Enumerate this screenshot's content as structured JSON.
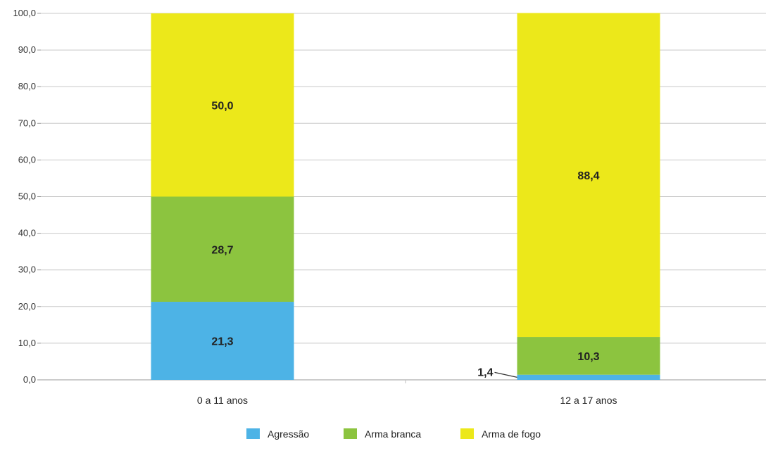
{
  "chart_data": {
    "type": "bar",
    "stacked": true,
    "categories": [
      "0 a 11 anos",
      "12 a 17 anos"
    ],
    "series": [
      {
        "name": "Agressão",
        "color": "#4db3e6",
        "values": [
          21.3,
          1.4
        ]
      },
      {
        "name": "Arma branca",
        "color": "#8cc43f",
        "values": [
          28.7,
          10.3
        ]
      },
      {
        "name": "Arma de fogo",
        "color": "#ece81a",
        "values": [
          50.0,
          88.4
        ]
      }
    ],
    "data_labels": [
      [
        "21,3",
        "1,4"
      ],
      [
        "28,7",
        "10,3"
      ],
      [
        "50,0",
        "88,4"
      ]
    ],
    "y_ticks": [
      0,
      10,
      20,
      30,
      40,
      50,
      60,
      70,
      80,
      90,
      100
    ],
    "y_tick_labels": [
      "0,0",
      "10,0",
      "20,0",
      "30,0",
      "40,0",
      "50,0",
      "60,0",
      "70,0",
      "80,0",
      "90,0",
      "100,0"
    ],
    "ylim": [
      0,
      100
    ],
    "grid": true,
    "legend_position": "bottom",
    "title": "",
    "xlabel": "",
    "ylabel": ""
  }
}
